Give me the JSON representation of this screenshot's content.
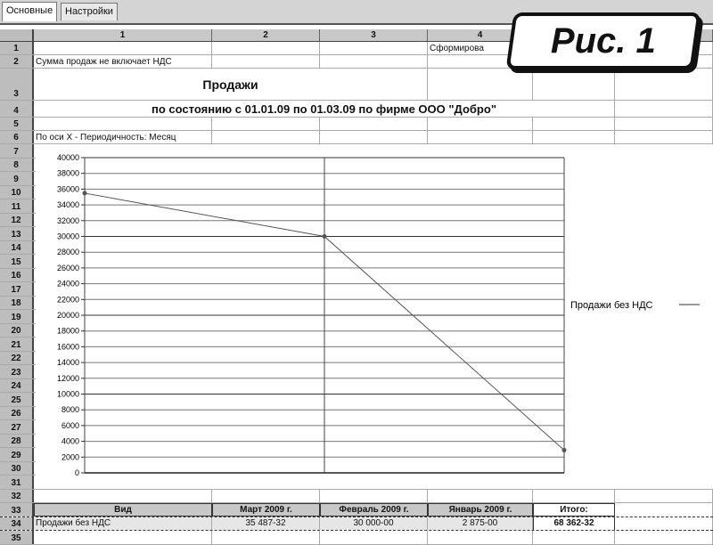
{
  "tabs": [
    "Основные",
    "Настройки"
  ],
  "columns": [
    "1",
    "2",
    "3",
    "4"
  ],
  "rows": {
    "r1_c4": "Сформирова",
    "r2_c1": "Сумма продаж не включает НДС",
    "r3_title": "Продажи",
    "r4_subtitle": "по состоянию с 01.01.09 по 01.03.09 по фирме ООО \"Добро\"",
    "r6_c1": "По оси X - Периодичность: Месяц"
  },
  "row_numbers": [
    "1",
    "2",
    "3",
    "4",
    "5",
    "6",
    "7",
    "8",
    "9",
    "10",
    "11",
    "12",
    "13",
    "14",
    "15",
    "16",
    "17",
    "18",
    "19",
    "20",
    "21",
    "22",
    "23",
    "24",
    "25",
    "26",
    "27",
    "28",
    "29",
    "30",
    "31",
    "32",
    "33",
    "34",
    "35"
  ],
  "table": {
    "headers": [
      "Вид",
      "Март 2009 г.",
      "Февраль 2009 г.",
      "Январь 2009 г.",
      "Итого:"
    ],
    "row": [
      "Продажи без НДС",
      "35 487-32",
      "30 000-00",
      "2 875-00",
      "68 362-32"
    ]
  },
  "badge": "Рис. 1",
  "chart_data": {
    "type": "line",
    "categories": [
      "Март 2009 г.",
      "Февраль 2009 г.",
      "Январь 2009 г."
    ],
    "series": [
      {
        "name": "Продажи без НДС",
        "values": [
          35487.32,
          30000,
          2875
        ]
      }
    ],
    "ylim": [
      0,
      40000
    ],
    "yticks": [
      0,
      2000,
      4000,
      6000,
      8000,
      10000,
      12000,
      14000,
      16000,
      18000,
      20000,
      22000,
      24000,
      26000,
      28000,
      30000,
      32000,
      34000,
      36000,
      38000,
      40000
    ],
    "grid": true,
    "legend": "right",
    "line_color": "#555555"
  }
}
